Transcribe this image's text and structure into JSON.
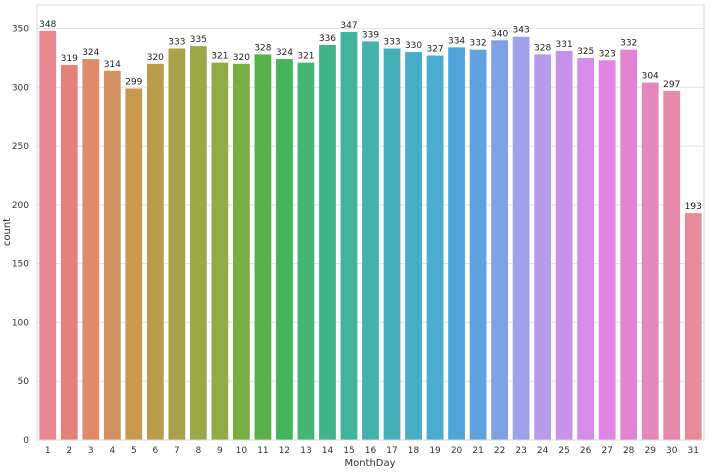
{
  "chart_data": {
    "type": "bar",
    "xlabel": "MonthDay",
    "ylabel": "count",
    "ylim": [
      0,
      370
    ],
    "yticks": [
      0,
      50,
      100,
      150,
      200,
      250,
      300,
      350
    ],
    "grid": "horizontal",
    "categories": [
      "1",
      "2",
      "3",
      "4",
      "5",
      "6",
      "7",
      "8",
      "9",
      "10",
      "11",
      "12",
      "13",
      "14",
      "15",
      "16",
      "17",
      "18",
      "19",
      "20",
      "21",
      "22",
      "23",
      "24",
      "25",
      "26",
      "27",
      "28",
      "29",
      "30",
      "31"
    ],
    "values": [
      348,
      319,
      324,
      314,
      299,
      320,
      333,
      335,
      321,
      320,
      328,
      324,
      321,
      336,
      347,
      339,
      333,
      330,
      327,
      334,
      332,
      340,
      343,
      328,
      331,
      325,
      323,
      332,
      304,
      297,
      193
    ],
    "colors": [
      "#e8868f",
      "#e5817a",
      "#df8b67",
      "#d39161",
      "#c89a4e",
      "#b99c4c",
      "#a9a249",
      "#9ba847",
      "#8fac47",
      "#79ae45",
      "#5ab14b",
      "#45b45a",
      "#44b574",
      "#42b48b",
      "#42b39c",
      "#43b2aa",
      "#43b0b7",
      "#47aec5",
      "#4babd1",
      "#4fa5d9",
      "#5fa2de",
      "#7fa2e5",
      "#9ea2ea",
      "#b69aeb",
      "#c793ea",
      "#d48de8",
      "#e184e4",
      "#e384d2",
      "#e487bc",
      "#e68aab",
      "#e78b9a"
    ]
  }
}
